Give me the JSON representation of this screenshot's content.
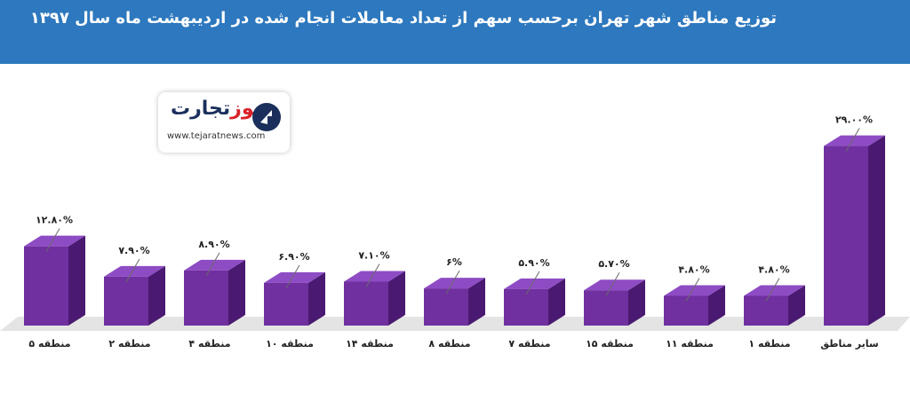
{
  "header": {
    "title": "توزیع مناطق شهر تهران برحسب سهم از تعداد معاملات انجام شده در اردیبهشت ماه سال ۱۳۹۷"
  },
  "logo": {
    "name_blue": "تجارت",
    "name_red": "نیوز",
    "url": "www.tejaratnews.com",
    "icon": "tejarat-logo-icon"
  },
  "colors": {
    "header_bg": "#2d78be",
    "bar_front": "#7030a0",
    "bar_top": "#8e4cc4",
    "bar_side": "#4a1a72",
    "floor": "#e4e4e4"
  },
  "chart_data": {
    "type": "bar",
    "categories": [
      "منطقه ۵",
      "منطقه ۲",
      "منطقه ۴",
      "منطقه ۱۰",
      "منطقه ۱۴",
      "منطقه ۸",
      "منطقه ۷",
      "منطقه ۱۵",
      "منطقه ۱۱",
      "منطقه ۱",
      "سایر مناطق"
    ],
    "values": [
      12.8,
      7.9,
      8.9,
      6.9,
      7.1,
      6,
      5.9,
      5.7,
      4.8,
      4.8,
      29
    ],
    "data_labels": [
      "۱۲.۸۰%",
      "۷.۹۰%",
      "۸.۹۰%",
      "۶.۹۰%",
      "۷.۱۰%",
      "۶%",
      "۵.۹۰%",
      "۵.۷۰%",
      "۴.۸۰%",
      "۴.۸۰%",
      "۲۹.۰۰%"
    ],
    "ylim": [
      0,
      30
    ],
    "grid": false,
    "title": "",
    "xlabel": "",
    "ylabel": ""
  }
}
